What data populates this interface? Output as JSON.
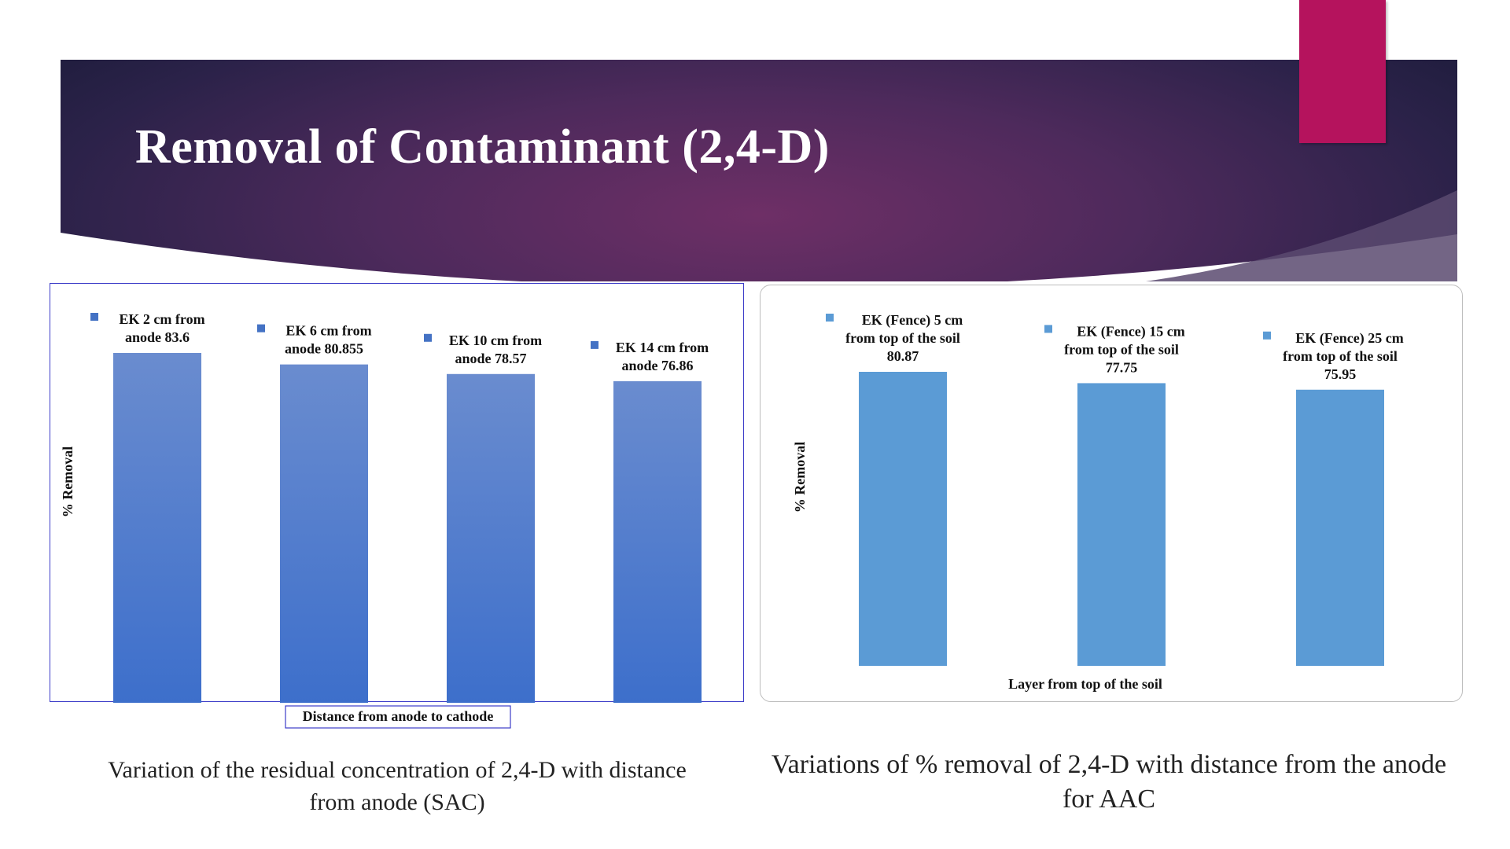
{
  "slide": {
    "title": "Removal of Contaminant (2,4-D)",
    "accent_color": "#b5135d",
    "banner_color": "#4e2a5c"
  },
  "chart_data": [
    {
      "type": "bar",
      "caption": "Variation of the residual concentration of 2,4-D with distance from anode (SAC)",
      "xlabel": "Distance from anode to cathode",
      "ylabel": "% Removal",
      "bar_color": "#4472c4",
      "categories": [
        "EK 2 cm from anode",
        "EK 6 cm from anode",
        "EK 10 cm from anode",
        "EK 14 cm from anode"
      ],
      "values": [
        83.6,
        80.855,
        78.57,
        76.86
      ],
      "labels": [
        [
          "EK    2 cm from",
          "anode 83.6"
        ],
        [
          "EK    6 cm from",
          "anode 80.855"
        ],
        [
          "EK    10 cm from",
          "anode 78.57"
        ],
        [
          "EK    14 cm from",
          "anode 76.86"
        ]
      ],
      "grid": false
    },
    {
      "type": "bar",
      "caption": "Variations of % removal of 2,4-D with distance from the anode for AAC",
      "xlabel": "Layer from top of the soil",
      "ylabel": "% Removal",
      "bar_color": "#5b9bd5",
      "categories": [
        "EK (Fence) 5 cm from top of the soil",
        "EK (Fence) 15 cm from top of the soil",
        "EK (Fence) 25 cm from top of the soil"
      ],
      "values": [
        80.87,
        77.75,
        75.95
      ],
      "labels": [
        [
          "EK (Fence) 5 cm",
          "from top of the soil",
          "80.87"
        ],
        [
          "EK (Fence) 15 cm",
          "from top of the soil",
          "77.75"
        ],
        [
          "EK (Fence) 25 cm",
          "from top of the soil",
          "75.95"
        ]
      ],
      "grid": false
    }
  ]
}
